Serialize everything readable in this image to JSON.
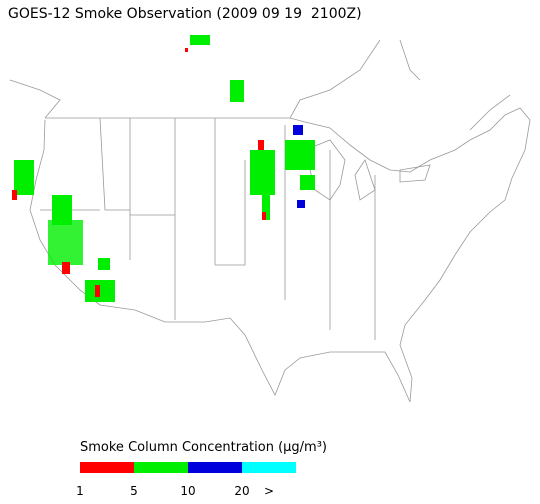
{
  "title": "GOES-12 Smoke Observation (2009 09 19  2100Z)",
  "legend": {
    "label": "Smoke Column Concentration (μg/m³)",
    "colors": [
      "#ff0000",
      "#00ee00",
      "#0000dd",
      "#00ffff"
    ],
    "ticks": [
      "1",
      "5",
      "10",
      "20",
      ">"
    ]
  }
}
